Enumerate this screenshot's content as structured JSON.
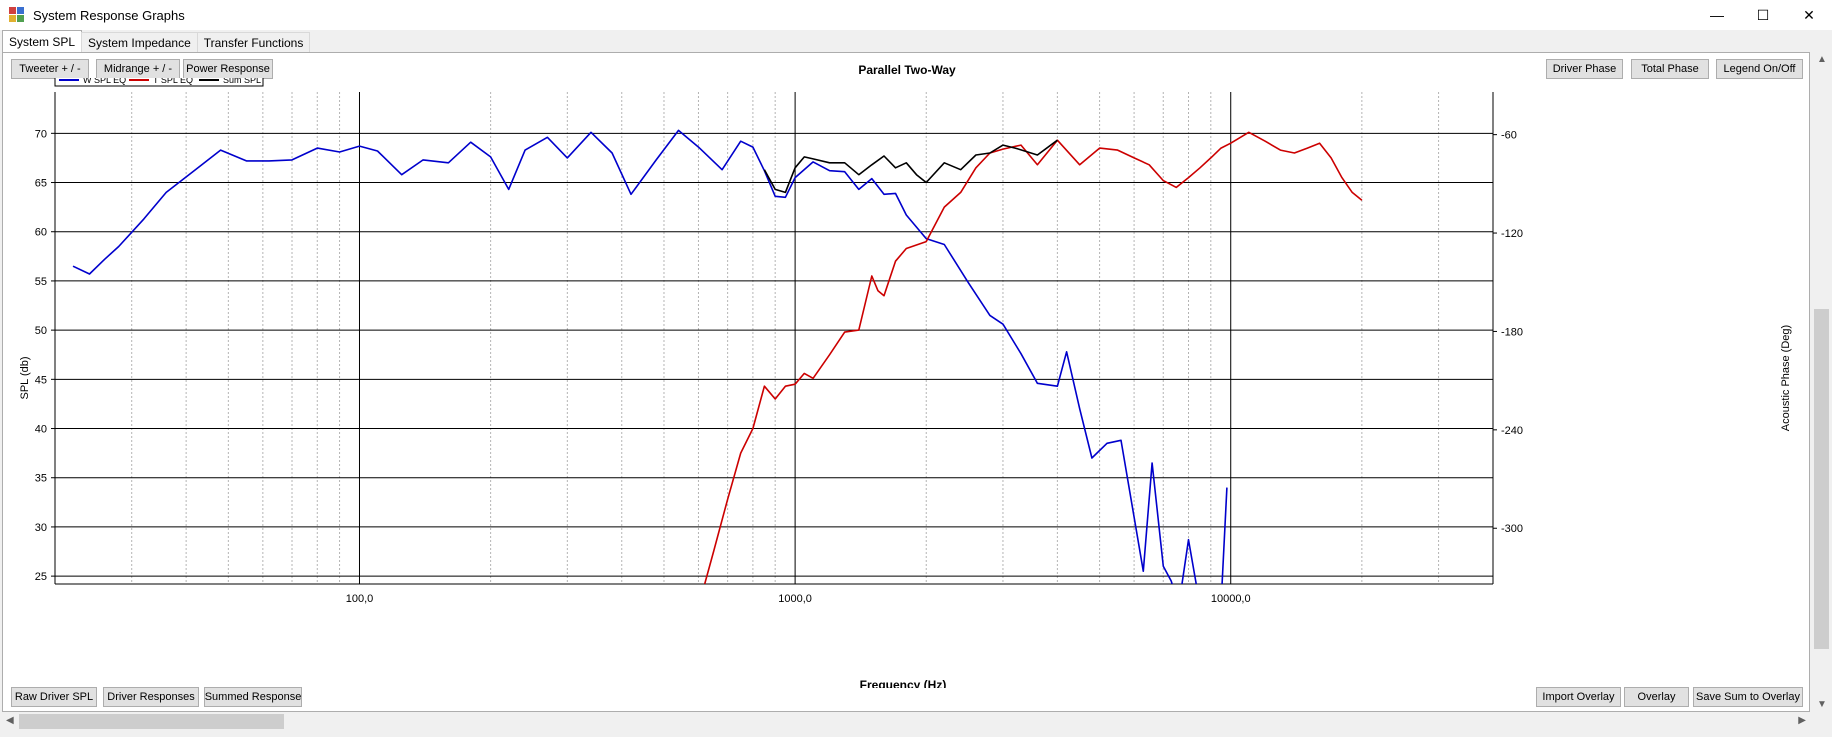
{
  "window": {
    "title": "System Response Graphs"
  },
  "tabs": [
    {
      "label": "System SPL",
      "active": true
    },
    {
      "label": "System Impedance",
      "active": false
    },
    {
      "label": "Transfer Functions",
      "active": false
    }
  ],
  "top_buttons": {
    "tweeter": "Tweeter + / -",
    "midrange": "Midrange + / -",
    "power": "Power Response",
    "driver_phase": "Driver Phase",
    "total_phase": "Total Phase",
    "legend": "Legend On/Off"
  },
  "bottom_buttons": {
    "raw": "Raw Driver SPL",
    "driver_resp": "Driver Responses",
    "summed": "Summed Response",
    "import_overlay": "Import Overlay",
    "overlay": "Overlay",
    "save_sum": "Save Sum to Overlay"
  },
  "colors": {
    "woofer": "#0000cc",
    "tweeter": "#cc0000",
    "sum": "#000000"
  },
  "chart_data": {
    "type": "line",
    "title": "Parallel Two-Way",
    "xlabel": "Frequency (Hz)",
    "ylabel": "SPL (db)",
    "y2label": "Acoustic Phase (Deg)",
    "x_scale": "log",
    "xlim": [
      20,
      40000
    ],
    "ylim": [
      24.2,
      74.2
    ],
    "y2lim": [
      -334,
      -34
    ],
    "x_major_ticks": [
      100,
      1000,
      10000
    ],
    "x_tick_labels": [
      "100,0",
      "1000,0",
      "10000,0"
    ],
    "y_ticks": [
      25,
      30,
      35,
      40,
      45,
      50,
      55,
      60,
      65,
      70
    ],
    "y_tick_labels": [
      "25",
      "30",
      "35",
      "40",
      "45",
      "50",
      "55",
      "60",
      "65",
      "70"
    ],
    "y2_ticks": [
      -60,
      -120,
      -180,
      -240,
      -300
    ],
    "y2_tick_labels": [
      "-60",
      "-120",
      "-180",
      "-240",
      "-300"
    ],
    "grid": true,
    "legend_position": "top-left",
    "series": [
      {
        "name": "W SPL EQ",
        "color": "#0000cc",
        "x": [
          22,
          24,
          26,
          28,
          32,
          36,
          42,
          48,
          55,
          62,
          70,
          80,
          90,
          100,
          110,
          125,
          140,
          160,
          180,
          200,
          220,
          240,
          270,
          300,
          340,
          380,
          420,
          480,
          540,
          600,
          680,
          750,
          800,
          850,
          900,
          950,
          1000,
          1100,
          1200,
          1300,
          1400,
          1500,
          1600,
          1700,
          1800,
          2000,
          2200,
          2500,
          2800,
          3000,
          3300,
          3600,
          4000,
          4200,
          4500,
          4800,
          5200,
          5600,
          6000,
          6300,
          6600,
          7000,
          7300,
          7600,
          8000,
          8500,
          9000,
          9500,
          9800
        ],
        "y": [
          56.5,
          55.7,
          57.2,
          58.5,
          61.3,
          64.0,
          66.3,
          68.3,
          67.2,
          67.2,
          67.3,
          68.5,
          68.1,
          68.7,
          68.2,
          65.8,
          67.3,
          67.0,
          69.1,
          67.6,
          64.3,
          68.3,
          69.6,
          67.5,
          70.1,
          68.0,
          63.8,
          67.3,
          70.3,
          68.6,
          66.3,
          69.2,
          68.6,
          66.2,
          63.6,
          63.5,
          65.5,
          67.1,
          66.2,
          66.1,
          64.3,
          65.4,
          63.8,
          63.9,
          61.7,
          59.3,
          58.7,
          54.8,
          51.5,
          50.6,
          47.6,
          44.6,
          44.3,
          47.8,
          42.0,
          37.0,
          38.5,
          38.8,
          31.0,
          25.5,
          36.5,
          26.0,
          24.5,
          22.0,
          28.7,
          22.0,
          20.5,
          22.0,
          34.0
        ]
      },
      {
        "name": "T SPL EQ",
        "color": "#cc0000",
        "x": [
          620,
          650,
          700,
          750,
          800,
          850,
          900,
          950,
          1000,
          1050,
          1100,
          1200,
          1300,
          1400,
          1500,
          1550,
          1600,
          1700,
          1800,
          2000,
          2200,
          2400,
          2600,
          2800,
          3000,
          3300,
          3600,
          4000,
          4500,
          5000,
          5500,
          6000,
          6500,
          7000,
          7500,
          8000,
          8500,
          9000,
          9500,
          10000,
          11000,
          12000,
          13000,
          14000,
          15000,
          16000,
          17000,
          18000,
          19000,
          20000
        ],
        "y": [
          24.2,
          27.5,
          32.8,
          37.5,
          40.0,
          44.3,
          43.0,
          44.3,
          44.5,
          45.6,
          45.1,
          47.5,
          49.8,
          50.0,
          55.5,
          54.0,
          53.5,
          57.0,
          58.3,
          59.0,
          62.5,
          64.0,
          66.5,
          68.0,
          68.4,
          68.8,
          66.8,
          69.3,
          66.8,
          68.5,
          68.3,
          67.5,
          66.8,
          65.2,
          64.5,
          65.5,
          66.5,
          67.5,
          68.5,
          69.0,
          70.1,
          69.2,
          68.3,
          68.0,
          68.5,
          69.0,
          67.5,
          65.5,
          64.0,
          63.2
        ]
      },
      {
        "name": "Sum SPL",
        "color": "#000000",
        "x": [
          850,
          900,
          950,
          1000,
          1050,
          1100,
          1200,
          1300,
          1400,
          1500,
          1600,
          1700,
          1800,
          1900,
          2000,
          2200,
          2400,
          2600,
          2800,
          3000,
          3200,
          3600,
          4000
        ],
        "y": [
          66.3,
          64.3,
          64.0,
          66.5,
          67.6,
          67.4,
          67.0,
          67.0,
          65.8,
          66.8,
          67.7,
          66.5,
          67.0,
          65.8,
          65.0,
          67.0,
          66.3,
          67.8,
          68.0,
          68.8,
          68.5,
          67.8,
          69.3
        ]
      }
    ]
  }
}
